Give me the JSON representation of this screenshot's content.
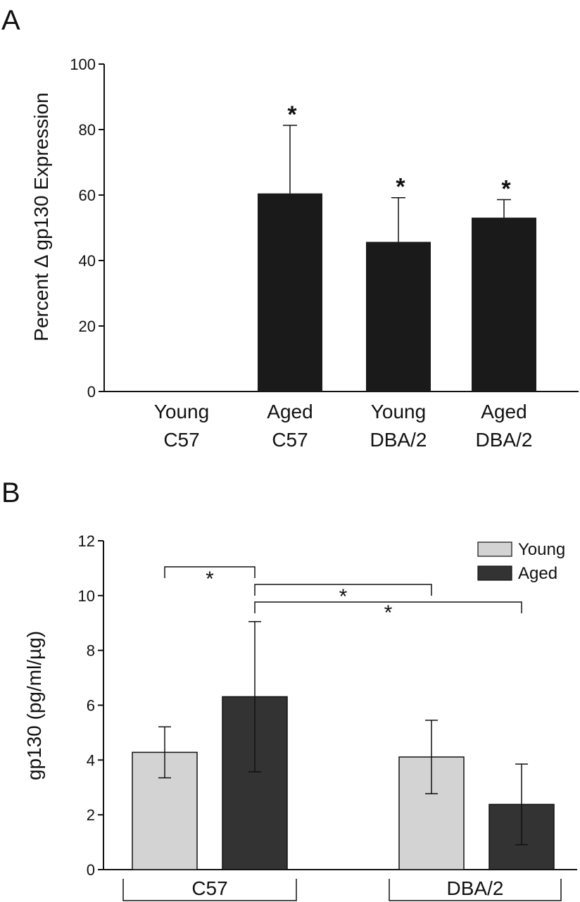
{
  "panelA": {
    "letter": "A",
    "chart_data": {
      "type": "bar",
      "ylabel": "Percent Δ gp130 Expression",
      "ylim": [
        0,
        100
      ],
      "yticks": [
        "0",
        "20",
        "40",
        "60",
        "80",
        "100"
      ],
      "categories": [
        {
          "line1": "Young",
          "line2": "C57"
        },
        {
          "line1": "Aged",
          "line2": "C57"
        },
        {
          "line1": "Young",
          "line2": "DBA/2"
        },
        {
          "line1": "Aged",
          "line2": "DBA/2"
        }
      ],
      "values": [
        0,
        60.5,
        45.7,
        53.1
      ],
      "errors": [
        0,
        20.8,
        13.5,
        5.5
      ],
      "significance": [
        "",
        "*",
        "*",
        "*"
      ],
      "bar_color": "#1a1a1a"
    }
  },
  "panelB": {
    "letter": "B",
    "chart_data": {
      "type": "bar",
      "ylabel": "gp130 (pg/ml/µg)",
      "ylim": [
        0,
        12
      ],
      "yticks": [
        "0",
        "2",
        "4",
        "6",
        "8",
        "10",
        "12"
      ],
      "groups": [
        "C57",
        "DBA/2"
      ],
      "series": [
        {
          "name": "Young",
          "color": "#d3d3d3",
          "values": [
            4.28,
            4.11
          ],
          "errors": [
            0.93,
            1.34
          ]
        },
        {
          "name": "Aged",
          "color": "#333333",
          "values": [
            6.31,
            2.38
          ],
          "errors": [
            2.74,
            1.47
          ]
        }
      ],
      "legend_position": "top-right",
      "significance_brackets": [
        {
          "from": "Young C57",
          "to": "Aged C57",
          "label": "*"
        },
        {
          "from": "Aged C57",
          "to": "Young DBA/2",
          "label": "*"
        },
        {
          "from": "Aged C57",
          "to": "Aged DBA/2",
          "label": "*"
        }
      ]
    }
  }
}
